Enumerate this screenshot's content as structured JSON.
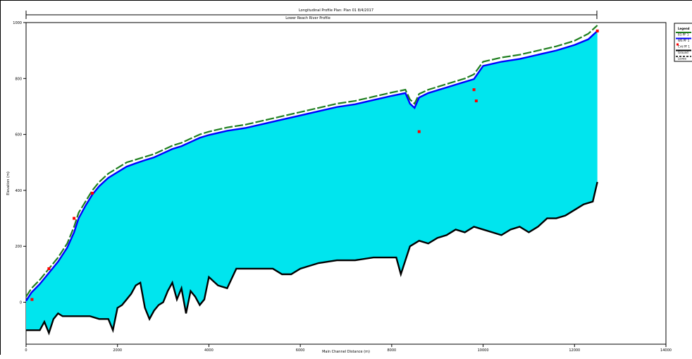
{
  "window": {
    "title": "Longitudinal Profile      Plan: Plan 01    8/4/2017",
    "subtitle": "Lower Reach  River Profile"
  },
  "chart_data": {
    "type": "area",
    "title": "Longitudinal Profile      Plan: Plan 01    8/4/2017",
    "subtitle": "Lower Reach  River Profile",
    "xlabel": "Main Channel Distance (m)",
    "ylabel": "Elevation (m)",
    "xlim": [
      0,
      14000
    ],
    "ylim": [
      0,
      1000
    ],
    "x_ticks": [
      "0",
      "2000",
      "4000",
      "6000",
      "8000",
      "10000",
      "12000",
      "14000"
    ],
    "y_ticks": [
      "0",
      "200",
      "400",
      "600",
      "800",
      "1000"
    ],
    "legend_position": "top-right",
    "legend": [
      {
        "name": "Legend",
        "color": "#ffffff",
        "kind": "header"
      },
      {
        "name": "EG PF 1",
        "color": "#1f7f1f",
        "kind": "line"
      },
      {
        "name": "WS PF 1",
        "color": "#0000ff",
        "kind": "line"
      },
      {
        "name": "Crit PF 1",
        "color": "#ff0000",
        "kind": "marker"
      },
      {
        "name": "Ground",
        "color": "#000000",
        "kind": "line"
      },
      {
        "name": "Levee",
        "color": "#000000",
        "kind": "dash"
      }
    ],
    "fill_color": "#00e5ee",
    "series": [
      {
        "name": "EG PF 1",
        "color": "#1f7f1f",
        "x": [
          0,
          120,
          300,
          500,
          700,
          900,
          1050,
          1150,
          1300,
          1450,
          1600,
          1800,
          2000,
          2200,
          2400,
          2600,
          2800,
          3000,
          3200,
          3400,
          3600,
          3800,
          4000,
          4400,
          4800,
          5200,
          5600,
          6000,
          6400,
          6800,
          7200,
          7600,
          8000,
          8300,
          8400,
          8500,
          8600,
          8800,
          9000,
          9200,
          9400,
          9600,
          9800,
          10000,
          10400,
          10800,
          11200,
          11600,
          12000,
          12300,
          12500
        ],
        "y": [
          20,
          50,
          80,
          120,
          160,
          210,
          270,
          320,
          360,
          400,
          430,
          460,
          480,
          500,
          510,
          520,
          530,
          545,
          560,
          570,
          585,
          600,
          610,
          625,
          635,
          650,
          665,
          680,
          695,
          710,
          720,
          735,
          750,
          760,
          725,
          710,
          745,
          760,
          770,
          780,
          790,
          800,
          815,
          860,
          875,
          885,
          900,
          915,
          935,
          960,
          990
        ]
      },
      {
        "name": "WS PF 1",
        "color": "#0000ff",
        "x": [
          0,
          120,
          300,
          500,
          700,
          900,
          1050,
          1150,
          1300,
          1450,
          1600,
          1800,
          2000,
          2200,
          2400,
          2600,
          2800,
          3000,
          3200,
          3400,
          3600,
          3800,
          4000,
          4400,
          4800,
          5200,
          5600,
          6000,
          6400,
          6800,
          7200,
          7600,
          8000,
          8300,
          8400,
          8500,
          8600,
          8800,
          9000,
          9200,
          9400,
          9600,
          9800,
          10000,
          10400,
          10800,
          11200,
          11600,
          12000,
          12300,
          12500
        ],
        "y": [
          5,
          35,
          65,
          105,
          145,
          195,
          250,
          300,
          345,
          385,
          415,
          445,
          465,
          485,
          497,
          508,
          518,
          533,
          548,
          558,
          573,
          588,
          598,
          613,
          623,
          638,
          653,
          668,
          683,
          698,
          708,
          723,
          738,
          748,
          710,
          695,
          732,
          748,
          758,
          768,
          778,
          788,
          798,
          845,
          860,
          870,
          885,
          900,
          920,
          940,
          970
        ]
      },
      {
        "name": "Ground",
        "color": "#000000",
        "x": [
          0,
          300,
          400,
          500,
          600,
          700,
          800,
          1000,
          1200,
          1400,
          1600,
          1800,
          1900,
          2000,
          2100,
          2200,
          2300,
          2400,
          2500,
          2600,
          2700,
          2800,
          2900,
          3000,
          3100,
          3200,
          3300,
          3400,
          3500,
          3600,
          3700,
          3800,
          3900,
          4000,
          4200,
          4400,
          4600,
          4800,
          5000,
          5200,
          5400,
          5600,
          5800,
          6000,
          6400,
          6800,
          7200,
          7600,
          8000,
          8100,
          8200,
          8400,
          8600,
          8800,
          9000,
          9200,
          9400,
          9600,
          9800,
          10000,
          10200,
          10400,
          10600,
          10800,
          11000,
          11200,
          11400,
          11600,
          11800,
          12000,
          12200,
          12400,
          12500
        ],
        "y": [
          -100,
          -100,
          -70,
          -110,
          -60,
          -40,
          -50,
          -50,
          -50,
          -50,
          -60,
          -60,
          -100,
          -20,
          -10,
          10,
          30,
          60,
          70,
          -20,
          -60,
          -30,
          -10,
          0,
          40,
          70,
          10,
          50,
          -40,
          40,
          20,
          -10,
          10,
          90,
          60,
          50,
          120,
          120,
          120,
          120,
          120,
          100,
          100,
          120,
          140,
          150,
          150,
          160,
          160,
          160,
          100,
          200,
          220,
          210,
          230,
          240,
          260,
          250,
          270,
          260,
          250,
          240,
          260,
          270,
          250,
          270,
          300,
          300,
          310,
          330,
          350,
          360,
          430
        ]
      }
    ]
  }
}
